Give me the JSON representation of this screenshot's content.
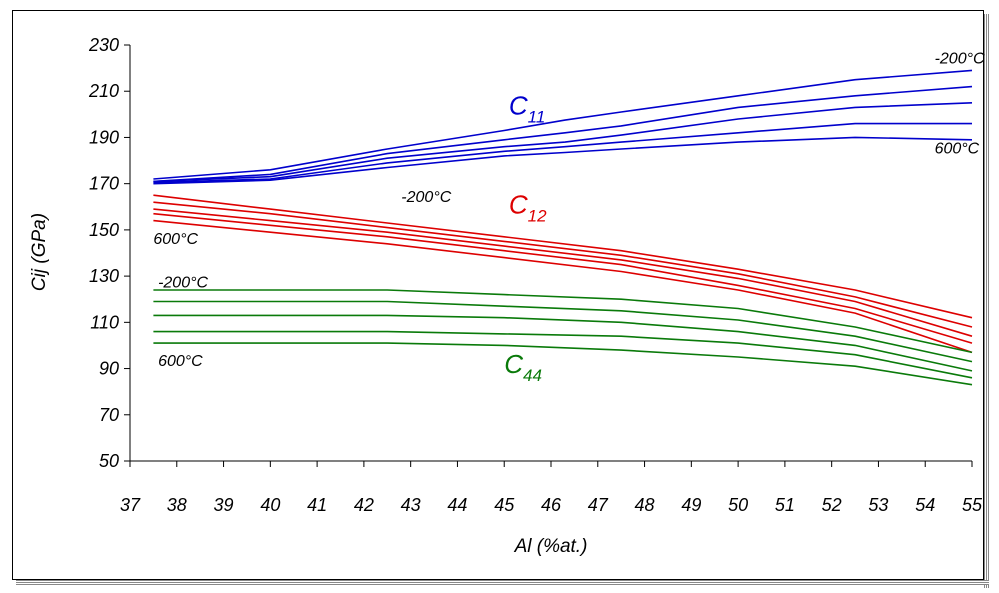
{
  "chart_data": {
    "type": "line",
    "title": "",
    "xlabel": "Al (%at.)",
    "ylabel": "Cij (GPa)",
    "xlim": [
      37,
      55
    ],
    "ylim": [
      50,
      230
    ],
    "xticks": [
      37,
      38,
      39,
      40,
      41,
      42,
      43,
      44,
      45,
      46,
      47,
      48,
      49,
      50,
      51,
      52,
      53,
      54,
      55
    ],
    "yticks": [
      50,
      70,
      90,
      110,
      130,
      150,
      170,
      190,
      210,
      230
    ],
    "grid": false,
    "legend": "none",
    "groups": [
      {
        "label": "C11",
        "label_main": "C",
        "label_sub": "11",
        "color": "#0000cc",
        "label_pos": [
          45.1,
          200
        ],
        "temp_high": "-200°C",
        "temp_high_pos": [
          54.2,
          222
        ],
        "temp_low": "600°C",
        "temp_low_pos": [
          54.2,
          183
        ],
        "series": [
          {
            "x": [
              37.5,
              40,
              42.5,
              45,
              46.3,
              47.5,
              50,
              52.5,
              55
            ],
            "y": [
              172,
              176,
              185,
              193,
              197.5,
              201,
              208,
              215,
              219
            ]
          },
          {
            "x": [
              37.5,
              40,
              42.5,
              45,
              46.3,
              47.5,
              50,
              52.5,
              55
            ],
            "y": [
              171,
              174,
              183,
              189,
              192,
              195,
              203,
              208,
              212
            ]
          },
          {
            "x": [
              37.5,
              40,
              42.5,
              45,
              46.3,
              47.5,
              50,
              52.5,
              55
            ],
            "y": [
              171,
              173,
              181,
              186,
              188,
              191,
              198,
              203,
              205
            ]
          },
          {
            "x": [
              37.5,
              40,
              42.5,
              45,
              46.3,
              47.5,
              50,
              52.5,
              55
            ],
            "y": [
              170.5,
              172,
              179,
              184,
              186,
              188,
              192,
              196,
              196
            ]
          },
          {
            "x": [
              37.5,
              40,
              42.5,
              45,
              46.3,
              47.5,
              50,
              52.5,
              55
            ],
            "y": [
              170,
              171.5,
              177,
              182,
              183.5,
              185,
              188,
              190,
              189
            ]
          }
        ]
      },
      {
        "label": "C12",
        "label_main": "C",
        "label_sub": "12",
        "color": "#dd0000",
        "label_pos": [
          45.1,
          157
        ],
        "temp_high": "-200°C",
        "temp_high_pos": [
          42.8,
          162
        ],
        "temp_low": "600°C",
        "temp_low_pos": [
          37.5,
          144
        ],
        "series": [
          {
            "x": [
              37.5,
              40,
              42.5,
              45,
              47.5,
              50,
              52.5,
              55
            ],
            "y": [
              165,
              159,
              153,
              147,
              141,
              133,
              124,
              112
            ]
          },
          {
            "x": [
              37.5,
              40,
              42.5,
              45,
              47.5,
              50,
              52.5,
              55
            ],
            "y": [
              162,
              157,
              151,
              145,
              139,
              131,
              121,
              108
            ]
          },
          {
            "x": [
              37.5,
              40,
              42.5,
              45,
              47.5,
              50,
              52.5,
              55
            ],
            "y": [
              159,
              154,
              149,
              143,
              137,
              129,
              119,
              104
            ]
          },
          {
            "x": [
              37.5,
              40,
              42.5,
              45,
              47.5,
              50,
              52.5,
              55
            ],
            "y": [
              157,
              152,
              147,
              141,
              135,
              126,
              116,
              101
            ]
          },
          {
            "x": [
              37.5,
              40,
              42.5,
              45,
              47.5,
              50,
              52.5,
              55
            ],
            "y": [
              154,
              149,
              144,
              138,
              132,
              124,
              114,
              97
            ]
          }
        ]
      },
      {
        "label": "C44",
        "label_main": "C",
        "label_sub": "44",
        "color": "#0a7a0a",
        "label_pos": [
          45.0,
          88
        ],
        "temp_high": "-200°C",
        "temp_high_pos": [
          37.6,
          125
        ],
        "temp_low": "600°C",
        "temp_low_pos": [
          37.6,
          91
        ],
        "series": [
          {
            "x": [
              37.5,
              40,
              42.5,
              45,
              47.5,
              50,
              52.5,
              55
            ],
            "y": [
              124,
              124,
              124,
              122,
              120,
              116,
              108,
              97
            ]
          },
          {
            "x": [
              37.5,
              40,
              42.5,
              45,
              47.5,
              50,
              52.5,
              55
            ],
            "y": [
              119,
              119,
              119,
              117,
              115,
              111,
              104,
              93
            ]
          },
          {
            "x": [
              37.5,
              40,
              42.5,
              45,
              47.5,
              50,
              52.5,
              55
            ],
            "y": [
              113,
              113,
              113,
              112,
              110,
              106,
              100,
              89
            ]
          },
          {
            "x": [
              37.5,
              40,
              42.5,
              45,
              47.5,
              50,
              52.5,
              55
            ],
            "y": [
              106,
              106,
              106,
              105,
              104,
              101,
              96,
              86
            ]
          },
          {
            "x": [
              37.5,
              40,
              42.5,
              45,
              47.5,
              50,
              52.5,
              55
            ],
            "y": [
              101,
              101,
              101,
              100,
              98,
              95,
              91,
              83
            ]
          }
        ]
      }
    ]
  }
}
